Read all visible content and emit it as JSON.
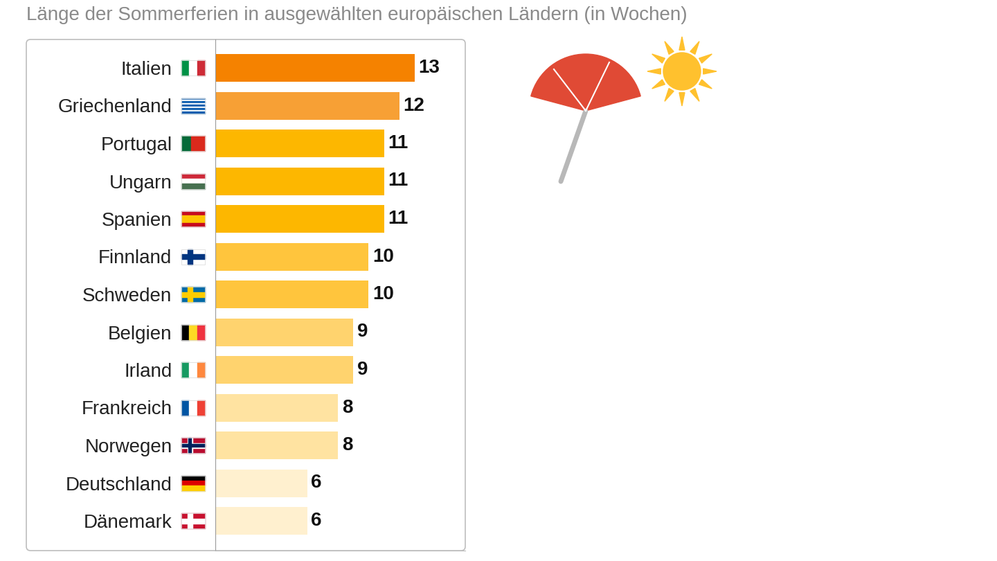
{
  "chart_data": {
    "type": "bar",
    "title": "Länge der Sommerferien in ausgewählten europäischen Ländern (in Wochen)",
    "orientation": "horizontal",
    "categories": [
      "Italien",
      "Griechenland",
      "Portugal",
      "Ungarn",
      "Spanien",
      "Finnland",
      "Schweden",
      "Belgien",
      "Irland",
      "Frankreich",
      "Norwegen",
      "Deutschland",
      "Dänemark"
    ],
    "values": [
      13,
      12,
      11,
      11,
      11,
      10,
      10,
      9,
      9,
      8,
      8,
      6,
      6
    ],
    "colors": [
      "#f58200",
      "#f7a035",
      "#fdb700",
      "#fdb700",
      "#fdb700",
      "#ffc53d",
      "#ffc53d",
      "#ffd36e",
      "#ffd36e",
      "#ffe3a1",
      "#ffe3a1",
      "#fff0cf",
      "#fff0cf"
    ],
    "xlim": [
      0,
      16.3
    ],
    "xticks": [],
    "data_labels": true,
    "tick_labels": "y",
    "grid": false
  }
}
